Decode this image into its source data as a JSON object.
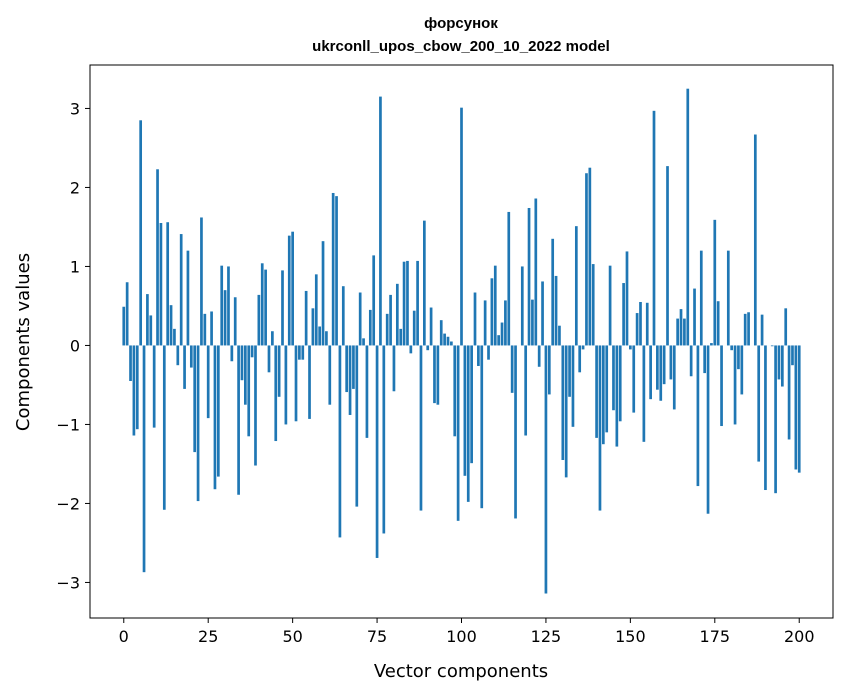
{
  "chart_data": {
    "type": "bar",
    "title": "форсунок",
    "subtitle": "ukrconll_upos_cbow_200_10_2022 model",
    "xlabel": "Vector components",
    "ylabel": "Components values",
    "xlim": [
      -10,
      210
    ],
    "ylim": [
      -3.45,
      3.55
    ],
    "xticks": [
      0,
      25,
      50,
      75,
      100,
      125,
      150,
      175,
      200
    ],
    "yticks": [
      -3,
      -2,
      -1,
      0,
      1,
      2,
      3
    ],
    "xtick_labels": [
      "0",
      "25",
      "50",
      "75",
      "100",
      "125",
      "150",
      "175",
      "200"
    ],
    "ytick_labels": [
      "−3",
      "−2",
      "−1",
      "0",
      "1",
      "2",
      "3"
    ],
    "bar_color": "#1f77b4",
    "grid": false,
    "values": [
      0.49,
      0.8,
      -0.45,
      -1.14,
      -1.06,
      2.85,
      -2.87,
      0.65,
      0.38,
      -1.04,
      2.23,
      1.55,
      -2.08,
      1.56,
      0.51,
      0.21,
      -0.25,
      1.41,
      -0.55,
      1.2,
      -0.28,
      -1.35,
      -1.97,
      1.62,
      0.4,
      -0.92,
      0.43,
      -1.82,
      -1.66,
      1.01,
      0.7,
      1.0,
      -0.2,
      0.61,
      -1.89,
      -0.44,
      -0.75,
      -1.15,
      -0.15,
      -1.52,
      0.64,
      1.04,
      0.96,
      -0.34,
      0.18,
      -1.21,
      -0.65,
      0.95,
      -1.0,
      1.39,
      1.44,
      -0.96,
      -0.18,
      -0.18,
      0.69,
      -0.93,
      0.47,
      0.9,
      0.24,
      1.32,
      0.18,
      -0.75,
      1.93,
      1.89,
      -2.43,
      0.75,
      -0.59,
      -0.88,
      -0.55,
      -2.04,
      0.67,
      0.09,
      -1.17,
      0.45,
      1.14,
      -2.69,
      3.15,
      -2.38,
      0.4,
      0.64,
      -0.58,
      0.78,
      0.21,
      1.06,
      1.07,
      -0.1,
      0.44,
      1.07,
      -2.09,
      1.58,
      -0.06,
      0.48,
      -0.73,
      -0.75,
      0.32,
      0.15,
      0.11,
      0.05,
      -1.15,
      -2.22,
      3.01,
      -1.65,
      -1.98,
      -1.49,
      0.67,
      -0.26,
      -2.06,
      0.57,
      -0.18,
      0.85,
      1.01,
      0.13,
      0.29,
      0.57,
      1.69,
      -0.6,
      -2.19,
      0.0,
      1.0,
      -1.14,
      1.74,
      0.58,
      1.86,
      -0.27,
      0.81,
      -3.14,
      -0.62,
      1.35,
      0.88,
      0.25,
      -1.45,
      -1.67,
      -0.65,
      -1.03,
      1.51,
      -0.34,
      -0.05,
      2.18,
      2.25,
      1.03,
      -1.17,
      -2.09,
      -1.25,
      -1.1,
      1.01,
      -0.82,
      -1.28,
      -0.96,
      0.79,
      1.19,
      -0.05,
      -0.85,
      0.41,
      0.55,
      -1.22,
      0.54,
      -0.68,
      2.97,
      -0.56,
      -0.7,
      -0.49,
      2.27,
      -0.43,
      -0.81,
      0.34,
      0.46,
      0.34,
      3.25,
      -0.39,
      0.72,
      -1.78,
      1.2,
      -0.35,
      -2.13,
      0.03,
      1.59,
      0.56,
      -1.02,
      0.0,
      1.2,
      -0.06,
      -1.0,
      -0.3,
      -0.62,
      0.4,
      0.42,
      0.0,
      2.67,
      -1.47,
      0.39,
      -1.83,
      0.0,
      -0.01,
      -1.87,
      -0.43,
      -0.52,
      0.47,
      -1.19,
      -0.25,
      -1.57,
      -1.61
    ]
  }
}
